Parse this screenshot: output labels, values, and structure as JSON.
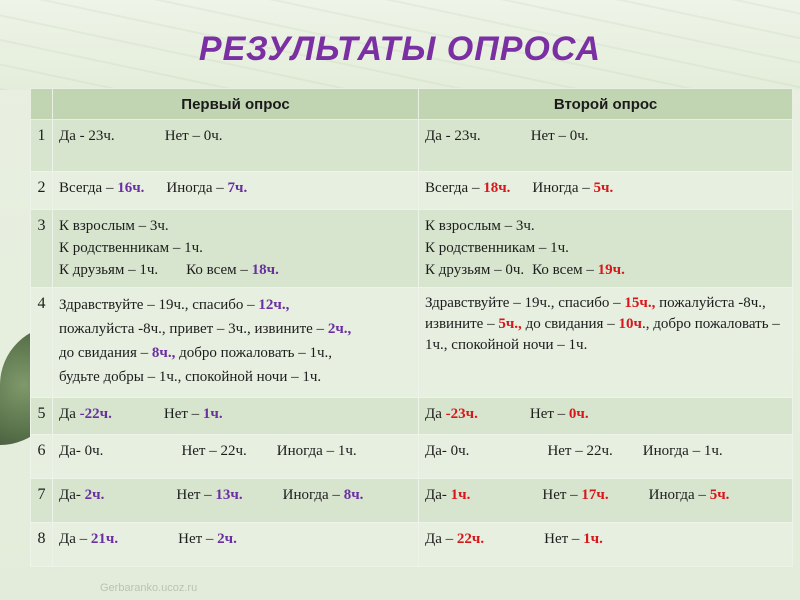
{
  "title": "РЕЗУЛЬТАТЫ ОПРОСА",
  "header": {
    "col1": "Первый опрос",
    "col2": "Второй опрос"
  },
  "footer_url": "Gerbaranko.ucoz.ru",
  "colors": {
    "title": "#7a2fa3",
    "highlight_purple": "#6a2fa0",
    "highlight_red": "#d8161b",
    "header_bg": "#c2d5b3"
  },
  "rows": [
    {
      "num": "1",
      "a": {
        "t1": "Да - 23ч.",
        "t2": "Нет – 0ч."
      },
      "b": {
        "t1": "Да - 23ч.",
        "t2": "Нет – 0ч."
      }
    },
    {
      "num": "2",
      "a": {
        "l1": "Всегда – ",
        "v1": "16ч.",
        "l2": "Иногда – ",
        "v2": "7ч."
      },
      "b": {
        "l1": "Всегда – ",
        "v1": "18ч.",
        "l2": "Иногда – ",
        "v2": "5ч."
      }
    },
    {
      "num": "3",
      "a": {
        "line1": "К взрослым – 3ч.",
        "line2": "К родственникам – 1ч.",
        "line3a": "К друзьям – 1ч.",
        "line3b": "Ко всем – ",
        "v": "18ч."
      },
      "b": {
        "line1": "К взрослым – 3ч.",
        "line2": "К родственникам – 1ч.",
        "line3a": "К друзьям – 0ч.",
        "line3b": "Ко всем – ",
        "v": "19ч."
      }
    },
    {
      "num": "4",
      "a": {
        "s1": "Здравствуйте – 19ч., спасибо – ",
        "v1": "12ч.,",
        "s2": "пожалуйста -8ч., привет – 3ч., извините – ",
        "v2": "2ч.,",
        "s3": "до свидания – ",
        "v3": "8ч.,",
        "s4": " добро пожаловать – 1ч.,",
        "s5": "будьте добры – 1ч., спокойной ночи – 1ч."
      },
      "b": {
        "s1": "Здравствуйте – 19ч., спасибо – ",
        "v1": "15ч.,",
        "s2": "пожалуйста -8ч., извините – ",
        "v2": "5ч.,",
        "s3": " до свидания – ",
        "v3": "10ч",
        "s4": "., добро пожаловать – 1ч., спокойной ночи – 1ч."
      }
    },
    {
      "num": "5",
      "a": {
        "l1": "Да ",
        "v1": "-22ч.",
        "l2": "Нет – ",
        "v2": "1ч."
      },
      "b": {
        "l1": "Да ",
        "v1": "-23ч.",
        "l2": "Нет – ",
        "v2": "0ч."
      }
    },
    {
      "num": "6",
      "a": {
        "t1": "Да- 0ч.",
        "t2": "Нет – 22ч.",
        "t3": "Иногда – 1ч."
      },
      "b": {
        "t1": "Да- 0ч.",
        "t2": "Нет – 22ч.",
        "t3": "Иногда – 1ч."
      }
    },
    {
      "num": "7",
      "a": {
        "l1": "Да- ",
        "v1": "2ч.",
        "l2": "Нет – ",
        "v2": "13ч.",
        "l3": "Иногда – ",
        "v3": "8ч."
      },
      "b": {
        "l1": "Да- ",
        "v1": "1ч.",
        "l2": "Нет – ",
        "v2": "17ч.",
        "l3": "Иногда – ",
        "v3": "5ч."
      }
    },
    {
      "num": "8",
      "a": {
        "l1": "Да – ",
        "v1": "21ч.",
        "l2": "Нет – ",
        "v2": "2ч."
      },
      "b": {
        "l1": "Да – ",
        "v1": "22ч.",
        "l2": "Нет – ",
        "v2": "1ч."
      }
    }
  ]
}
